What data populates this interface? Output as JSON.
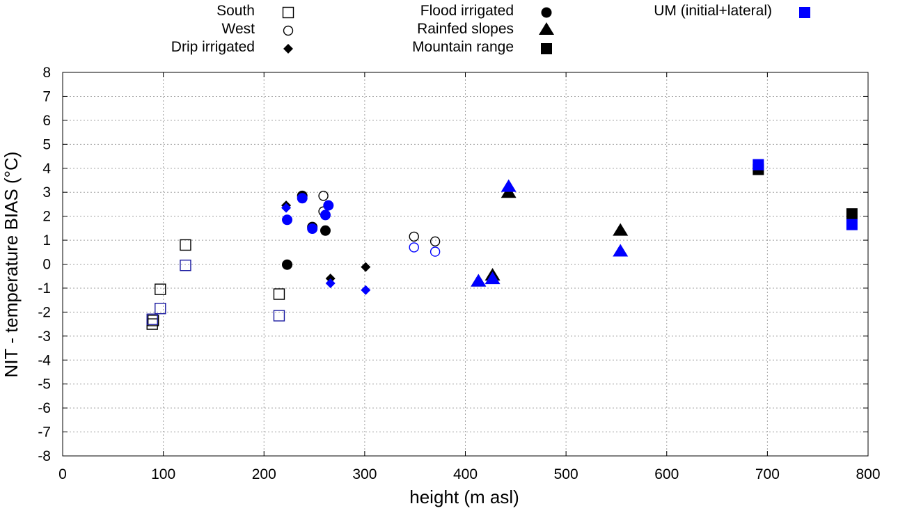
{
  "chart_data": {
    "type": "scatter",
    "title": "",
    "xlabel": "height (m asl)",
    "ylabel": "NIT - temperature BIAS (°C)",
    "xlim": [
      0,
      800
    ],
    "ylim": [
      -8,
      8
    ],
    "xticks": [
      0,
      100,
      200,
      300,
      400,
      500,
      600,
      700,
      800
    ],
    "yticks": [
      -8,
      -7,
      -6,
      -5,
      -4,
      -3,
      -2,
      -1,
      0,
      1,
      2,
      3,
      4,
      5,
      6,
      7,
      8
    ],
    "grid": true,
    "legend": {
      "placement": "top",
      "entries": [
        {
          "label": "South",
          "marker": "square-open",
          "color": "#000000"
        },
        {
          "label": "West",
          "marker": "circle-open",
          "color": "#000000"
        },
        {
          "label": "Drip irrigated",
          "marker": "diamond",
          "color": "#000000"
        },
        {
          "label": "Flood irrigated",
          "marker": "circle",
          "color": "#000000"
        },
        {
          "label": "Rainfed slopes",
          "marker": "triangle",
          "color": "#000000"
        },
        {
          "label": "Mountain range",
          "marker": "square",
          "color": "#000000"
        },
        {
          "label": "UM (initial+lateral)",
          "marker": "square",
          "color": "#0000ff"
        }
      ]
    },
    "series": [
      {
        "name": "South",
        "marker": "square-open",
        "color": "#000000",
        "points": [
          [
            89,
            -2.5
          ],
          [
            90,
            -2.35
          ],
          [
            97,
            -1.05
          ],
          [
            122,
            0.8
          ],
          [
            215,
            -1.25
          ]
        ]
      },
      {
        "name": "South UM",
        "marker": "square-open",
        "color": "#1a1aa0",
        "points": [
          [
            89,
            -2.3
          ],
          [
            97,
            -1.85
          ],
          [
            122,
            -0.05
          ],
          [
            215,
            -2.15
          ]
        ]
      },
      {
        "name": "West",
        "marker": "circle-open",
        "color": "#000000",
        "points": [
          [
            259,
            2.85
          ],
          [
            259,
            2.2
          ],
          [
            349,
            1.15
          ],
          [
            370,
            0.95
          ]
        ]
      },
      {
        "name": "West UM",
        "marker": "circle-open",
        "color": "#0000ff",
        "points": [
          [
            349,
            0.7
          ],
          [
            370,
            0.52
          ]
        ]
      },
      {
        "name": "Drip irrigated",
        "marker": "diamond",
        "color": "#000000",
        "points": [
          [
            222,
            2.45
          ],
          [
            266,
            -0.6
          ],
          [
            301,
            -0.12
          ]
        ]
      },
      {
        "name": "Drip irrigated UM",
        "marker": "diamond",
        "color": "#0000ff",
        "points": [
          [
            222,
            2.35
          ],
          [
            266,
            -0.8
          ],
          [
            301,
            -1.08
          ]
        ]
      },
      {
        "name": "Flood irrigated",
        "marker": "circle",
        "color": "#000000",
        "points": [
          [
            223,
            -0.02
          ],
          [
            238,
            2.85
          ],
          [
            248,
            1.55
          ],
          [
            261,
            1.4
          ]
        ]
      },
      {
        "name": "Flood irrigated UM",
        "marker": "circle",
        "color": "#0000ff",
        "points": [
          [
            223,
            1.85
          ],
          [
            238,
            2.75
          ],
          [
            248,
            1.48
          ],
          [
            261,
            2.05
          ],
          [
            264,
            2.45
          ]
        ]
      },
      {
        "name": "Rainfed slopes",
        "marker": "triangle",
        "color": "#000000",
        "points": [
          [
            413,
            -0.7
          ],
          [
            427,
            -0.45
          ],
          [
            443,
            3.0
          ],
          [
            554,
            1.42
          ]
        ]
      },
      {
        "name": "Rainfed slopes UM",
        "marker": "triangle",
        "color": "#0000ff",
        "points": [
          [
            413,
            -0.7
          ],
          [
            427,
            -0.6
          ],
          [
            443,
            3.25
          ],
          [
            554,
            0.55
          ]
        ]
      },
      {
        "name": "Mountain range",
        "marker": "square",
        "color": "#000000",
        "points": [
          [
            691,
            3.95
          ],
          [
            784,
            2.1
          ]
        ]
      },
      {
        "name": "Mountain range UM",
        "marker": "square",
        "color": "#0000ff",
        "points": [
          [
            691,
            4.15
          ],
          [
            784,
            1.65
          ]
        ]
      }
    ]
  }
}
